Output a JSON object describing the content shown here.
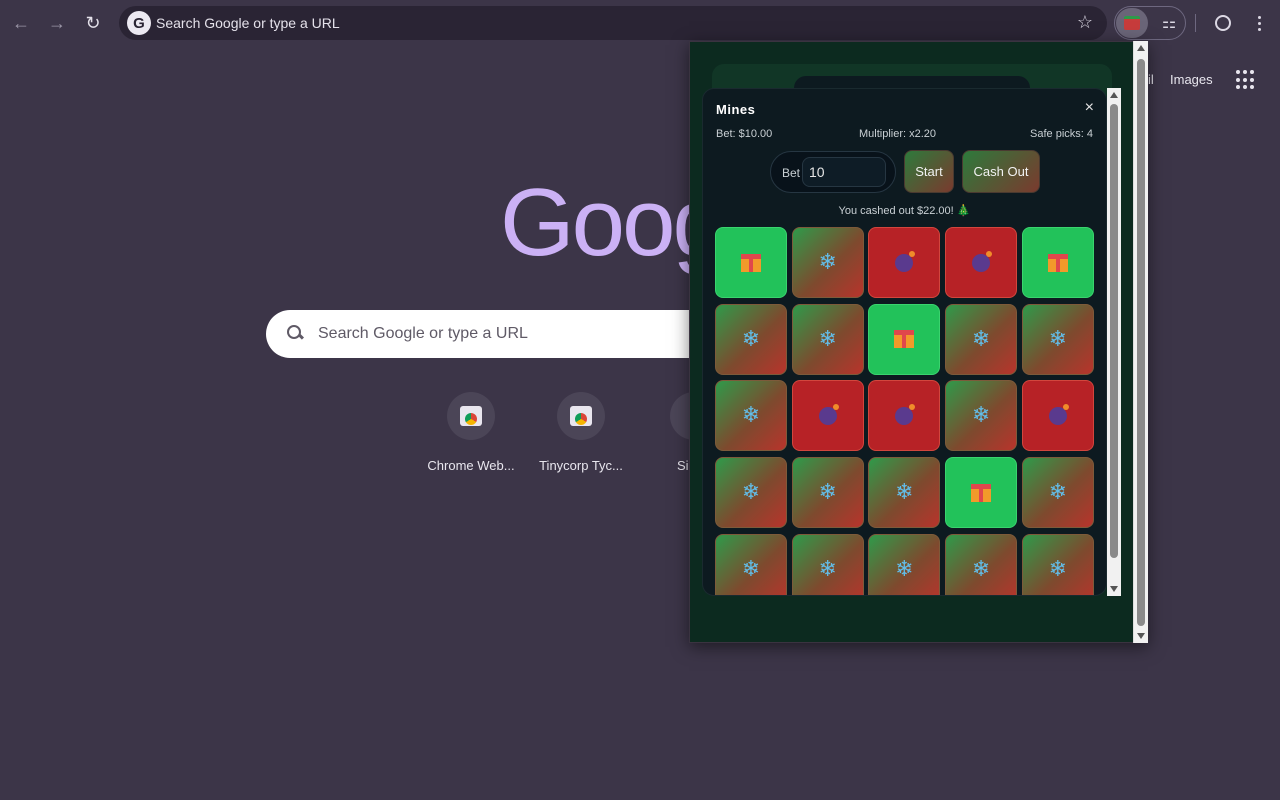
{
  "browser": {
    "omnibox_text": "Search Google or type a URL",
    "back_icon": "arrow-left-icon",
    "forward_icon": "arrow-right-icon",
    "reload_icon": "reload-icon"
  },
  "ntp": {
    "header_links": [
      "il",
      "Images"
    ],
    "logo_text": "Goog",
    "search_placeholder": "Search Google or type a URL",
    "shortcuts": [
      {
        "label": "Chrome Web..."
      },
      {
        "label": "Tinycorp Tyc..."
      },
      {
        "label": "Si"
      }
    ]
  },
  "mines": {
    "title": "Mines",
    "close_glyph": "×",
    "bet_text": "Bet: $10.00",
    "multiplier_text": "Multiplier: x2.20",
    "safe_picks_text": "Safe picks: 4",
    "bet_label": "Bet",
    "bet_value": "10",
    "start_label": "Start",
    "cashout_label": "Cash Out",
    "status_text": "You cashed out $22.00! 🎄",
    "tiles": [
      [
        "gift",
        "snow",
        "bomb",
        "bomb",
        "gift"
      ],
      [
        "snow",
        "snow",
        "gift",
        "snow",
        "snow"
      ],
      [
        "snow",
        "bomb",
        "bomb",
        "snow",
        "bomb"
      ],
      [
        "snow",
        "snow",
        "snow",
        "gift",
        "snow"
      ],
      [
        "snow",
        "snow",
        "snow",
        "snow",
        "snow"
      ]
    ],
    "colors": {
      "gift": "#22c25a",
      "bomb": "#b72226",
      "snow_from": "#2f9a4a",
      "snow_to": "#b8342c"
    }
  }
}
